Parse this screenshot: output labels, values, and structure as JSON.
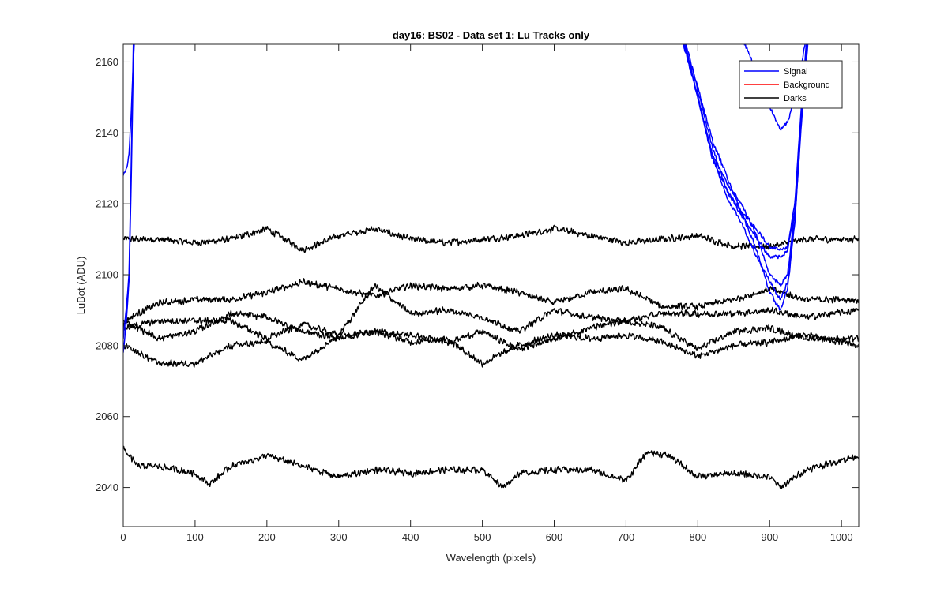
{
  "chart_data": {
    "type": "line",
    "title": "day16: BS02 - Data set 1: Lu Tracks only",
    "xlabel": "Wavelength (pixels)",
    "ylabel": "LuBot (ADU)",
    "xlim": [
      0,
      1024
    ],
    "ylim": [
      2029,
      2165
    ],
    "xticks": [
      0,
      100,
      200,
      300,
      400,
      500,
      600,
      700,
      800,
      900,
      1000
    ],
    "yticks": [
      2040,
      2060,
      2080,
      2100,
      2120,
      2140,
      2160
    ],
    "grid": false,
    "legend": {
      "position": "top-right",
      "entries": [
        {
          "label": "Signal",
          "color": "#0000ff"
        },
        {
          "label": "Background",
          "color": "#ff0000"
        },
        {
          "label": "Darks",
          "color": "#000000"
        }
      ]
    },
    "series": [
      {
        "group": "Darks",
        "color": "#000000",
        "noise": 1.1,
        "x": [
          0,
          50,
          100,
          150,
          200,
          250,
          300,
          350,
          400,
          450,
          500,
          550,
          600,
          650,
          700,
          750,
          800,
          850,
          900,
          950,
          1024
        ],
        "y": [
          2110,
          2110,
          2109,
          2110,
          2113,
          2107,
          2111,
          2113,
          2110,
          2109,
          2110,
          2111,
          2113,
          2111,
          2109,
          2110,
          2111,
          2108,
          2108,
          2110,
          2110
        ]
      },
      {
        "group": "Darks",
        "color": "#000000",
        "noise": 1.1,
        "x": [
          0,
          50,
          100,
          150,
          200,
          250,
          300,
          350,
          400,
          450,
          500,
          550,
          600,
          650,
          700,
          750,
          800,
          850,
          900,
          950,
          1024
        ],
        "y": [
          2087,
          2092,
          2093,
          2093,
          2095,
          2098,
          2096,
          2094,
          2097,
          2096,
          2097,
          2095,
          2092,
          2095,
          2096,
          2091,
          2091,
          2093,
          2096,
          2093,
          2093
        ]
      },
      {
        "group": "Darks",
        "color": "#000000",
        "noise": 1.1,
        "x": [
          0,
          50,
          100,
          150,
          200,
          250,
          300,
          350,
          400,
          450,
          500,
          550,
          600,
          650,
          700,
          750,
          800,
          850,
          900,
          950,
          1024
        ],
        "y": [
          2085,
          2087,
          2087,
          2087,
          2082,
          2086,
          2083,
          2097,
          2089,
          2090,
          2088,
          2084,
          2090,
          2088,
          2087,
          2089,
          2089,
          2089,
          2090,
          2088,
          2090
        ]
      },
      {
        "group": "Darks",
        "color": "#000000",
        "noise": 1.1,
        "x": [
          0,
          50,
          100,
          150,
          200,
          250,
          300,
          350,
          400,
          450,
          500,
          550,
          600,
          650,
          700,
          750,
          800,
          850,
          900,
          950,
          1024
        ],
        "y": [
          2087,
          2082,
          2084,
          2089,
          2088,
          2084,
          2082,
          2084,
          2083,
          2081,
          2084,
          2079,
          2082,
          2085,
          2087,
          2085,
          2079,
          2084,
          2085,
          2082,
          2082
        ]
      },
      {
        "group": "Darks",
        "color": "#000000",
        "noise": 1.1,
        "x": [
          0,
          50,
          100,
          150,
          200,
          250,
          300,
          350,
          400,
          450,
          500,
          550,
          600,
          650,
          700,
          750,
          800,
          850,
          900,
          950,
          1024
        ],
        "y": [
          2080,
          2075,
          2075,
          2080,
          2081,
          2076,
          2083,
          2084,
          2081,
          2082,
          2075,
          2080,
          2083,
          2082,
          2083,
          2081,
          2077,
          2080,
          2081,
          2083,
          2080
        ]
      },
      {
        "group": "Darks",
        "color": "#000000",
        "noise": 1.1,
        "x": [
          0,
          20,
          50,
          100,
          120,
          150,
          200,
          250,
          300,
          350,
          400,
          450,
          500,
          530,
          550,
          600,
          650,
          700,
          730,
          760,
          800,
          850,
          900,
          915,
          950,
          1024
        ],
        "y": [
          2051,
          2046,
          2046,
          2044,
          2041,
          2046,
          2049,
          2046,
          2043,
          2045,
          2044,
          2045,
          2045,
          2040,
          2044,
          2045,
          2045,
          2042,
          2050,
          2049,
          2043,
          2044,
          2043,
          2040,
          2045,
          2049
        ]
      },
      {
        "group": "Signal",
        "color": "#0000ff",
        "noise": 0.4,
        "x": [
          0,
          5,
          8,
          11,
          14,
          18
        ],
        "y": [
          2128,
          2130,
          2134,
          2145,
          2160,
          2175
        ]
      },
      {
        "group": "Signal",
        "color": "#0000ff",
        "noise": 0.4,
        "x": [
          0,
          4,
          8,
          11,
          14,
          18
        ],
        "y": [
          2082,
          2090,
          2100,
          2130,
          2165,
          2185
        ]
      },
      {
        "group": "Signal",
        "color": "#0000ff",
        "noise": 0.4,
        "x": [
          0,
          4,
          8,
          11,
          14,
          18
        ],
        "y": [
          2078,
          2086,
          2098,
          2125,
          2160,
          2185
        ]
      },
      {
        "group": "Signal",
        "color": "#0000ff",
        "noise": 0.7,
        "x": [
          765,
          780,
          800,
          820,
          840,
          860,
          880,
          900,
          915,
          925,
          935,
          945,
          955,
          965
        ],
        "y": [
          2175,
          2165,
          2153,
          2138,
          2128,
          2118,
          2108,
          2095,
          2090,
          2096,
          2115,
          2145,
          2170,
          2185
        ]
      },
      {
        "group": "Signal",
        "color": "#0000ff",
        "noise": 0.7,
        "x": [
          765,
          780,
          800,
          820,
          840,
          860,
          880,
          900,
          915,
          925,
          935,
          945,
          955,
          965
        ],
        "y": [
          2175,
          2165,
          2150,
          2134,
          2126,
          2120,
          2112,
          2100,
          2097,
          2100,
          2118,
          2148,
          2172,
          2188
        ]
      },
      {
        "group": "Signal",
        "color": "#0000ff",
        "noise": 0.7,
        "x": [
          765,
          780,
          800,
          820,
          840,
          860,
          880,
          900,
          915,
          925,
          935,
          945,
          955,
          965
        ],
        "y": [
          2176,
          2166,
          2150,
          2133,
          2124,
          2117,
          2111,
          2105,
          2105,
          2107,
          2118,
          2147,
          2172,
          2188
        ]
      },
      {
        "group": "Signal",
        "color": "#0000ff",
        "noise": 0.7,
        "x": [
          765,
          780,
          800,
          820,
          840,
          860,
          880,
          900,
          915,
          925,
          935,
          945,
          955,
          965
        ],
        "y": [
          2177,
          2168,
          2152,
          2136,
          2124,
          2118,
          2113,
          2108,
          2107,
          2108,
          2120,
          2150,
          2175,
          2190
        ]
      },
      {
        "group": "Signal",
        "color": "#0000ff",
        "noise": 0.7,
        "x": [
          765,
          780,
          800,
          820,
          840,
          860,
          880,
          900,
          915,
          925,
          935,
          945,
          955,
          965
        ],
        "y": [
          2176,
          2167,
          2150,
          2134,
          2122,
          2115,
          2106,
          2098,
          2093,
          2098,
          2115,
          2146,
          2172,
          2188
        ]
      },
      {
        "group": "Signal",
        "color": "#0000ff",
        "noise": 0.7,
        "x": [
          855,
          870,
          890,
          905,
          915,
          925,
          935,
          945,
          955
        ],
        "y": [
          2170,
          2163,
          2152,
          2145,
          2141,
          2143,
          2150,
          2160,
          2172
        ]
      }
    ]
  }
}
